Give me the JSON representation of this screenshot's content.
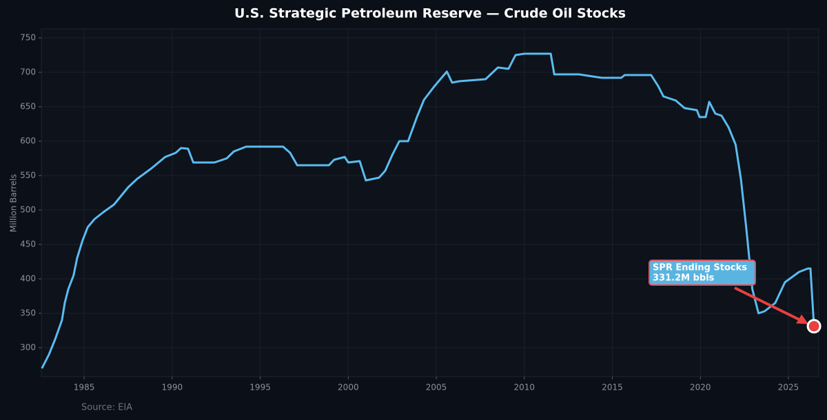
{
  "chart_data": {
    "type": "line",
    "title": "U.S. Strategic Petroleum Reserve — Crude Oil Stocks",
    "y_label": "Million Barrels",
    "source": "Source: EIA",
    "x": [
      1982.6,
      1983.0,
      1983.35,
      1983.74,
      1983.9,
      1984.1,
      1984.4,
      1984.6,
      1984.9,
      1985.2,
      1985.6,
      1986.1,
      1986.7,
      1987.5,
      1988.0,
      1988.8,
      1989.6,
      1990.2,
      1990.5,
      1990.9,
      1991.2,
      1992.4,
      1993.1,
      1993.5,
      1994.2,
      1996.3,
      1996.7,
      1997.1,
      1998.9,
      1999.2,
      1999.8,
      2000.0,
      2000.65,
      2001.0,
      2001.75,
      2002.1,
      2002.5,
      2002.9,
      2003.4,
      2003.9,
      2004.3,
      2004.9,
      2005.6,
      2005.9,
      2006.3,
      2007.8,
      2008.5,
      2009.1,
      2009.5,
      2010.0,
      2011.5,
      2011.7,
      2013.1,
      2014.4,
      2015.5,
      2015.7,
      2017.2,
      2017.6,
      2017.9,
      2018.6,
      2019.1,
      2019.8,
      2019.95,
      2020.3,
      2020.5,
      2020.85,
      2021.2,
      2021.6,
      2022.0,
      2022.3,
      2022.6,
      2022.95,
      2023.3,
      2023.65,
      2024.25,
      2024.8,
      2025.6,
      2026.1,
      2026.25,
      2026.45
    ],
    "values": [
      270,
      290,
      312,
      340,
      365,
      385,
      405,
      430,
      455,
      475,
      487,
      497,
      508,
      533,
      545,
      560,
      577,
      583,
      590,
      589,
      569,
      569,
      575,
      585,
      592,
      592,
      583,
      565,
      565,
      573,
      577,
      569,
      571,
      543,
      547,
      557,
      580,
      600,
      600,
      635,
      660,
      680,
      701,
      685,
      687,
      690,
      707,
      705,
      725,
      727,
      727,
      697,
      697,
      692,
      692,
      696,
      696,
      680,
      665,
      659,
      648,
      645,
      635,
      635,
      657,
      640,
      637,
      620,
      595,
      545,
      475,
      385,
      350,
      353,
      365,
      395,
      410,
      415,
      415,
      331.2
    ],
    "color": "#5bbcf0",
    "annotation": [
      "SPR Ending Stocks",
      "331.2M bbls"
    ],
    "xlim": [
      1982.57,
      2026.72
    ],
    "ylim": [
      258,
      763
    ],
    "xticks": [
      1985,
      1990,
      1995,
      2000,
      2005,
      2010,
      2015,
      2020,
      2025
    ],
    "yticks": [
      300,
      350,
      400,
      450,
      500,
      550,
      600,
      650,
      700,
      750
    ],
    "grid": true
  }
}
